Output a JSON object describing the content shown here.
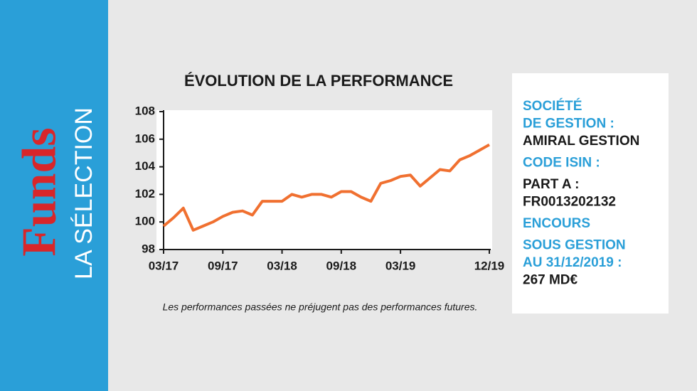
{
  "sidebar": {
    "brand": "Funds",
    "label": "LA SÉLECTION"
  },
  "chart_data": {
    "type": "line",
    "title": "ÉVOLUTION DE LA PERFORMANCE",
    "note": "Les performances passées ne préjugent pas des performances futures.",
    "x": [
      "03/17",
      "04/17",
      "05/17",
      "06/17",
      "07/17",
      "08/17",
      "09/17",
      "10/17",
      "11/17",
      "12/17",
      "01/18",
      "02/18",
      "03/18",
      "04/18",
      "05/18",
      "06/18",
      "07/18",
      "08/18",
      "09/18",
      "10/18",
      "11/18",
      "12/18",
      "01/19",
      "02/19",
      "03/19",
      "04/19",
      "05/19",
      "06/19",
      "07/19",
      "08/19",
      "09/19",
      "10/19",
      "11/19",
      "12/19"
    ],
    "series": [
      {
        "color": "#f07030",
        "values": [
          99.7,
          100.3,
          101.0,
          99.4,
          99.7,
          100.0,
          100.4,
          100.7,
          100.8,
          100.5,
          101.5,
          101.5,
          101.5,
          102.0,
          101.8,
          102.0,
          102.0,
          101.8,
          102.2,
          102.2,
          101.8,
          101.5,
          102.8,
          103.0,
          103.3,
          103.4,
          102.6,
          103.2,
          103.8,
          103.7,
          104.5,
          104.8,
          105.2,
          105.6
        ]
      }
    ],
    "xticks": [
      "03/17",
      "09/17",
      "03/18",
      "09/18",
      "03/19",
      "12/19"
    ],
    "ylim": [
      98,
      108
    ],
    "yticks": [
      98,
      100,
      102,
      104,
      106,
      108
    ],
    "grid": false
  },
  "info": {
    "lines": [
      {
        "text": "SOCIÉTÉ",
        "color": "#2a9fd8"
      },
      {
        "text": "DE GESTION :",
        "color": "#2a9fd8"
      },
      {
        "text": "AMIRAL GESTION",
        "color": "#1a1a1a"
      },
      {
        "text": "CODE ISIN :",
        "color": "#2a9fd8"
      },
      {
        "text": "PART A :",
        "color": "#1a1a1a"
      },
      {
        "text": "FR0013202132",
        "color": "#1a1a1a"
      },
      {
        "text": "ENCOURS",
        "color": "#2a9fd8"
      },
      {
        "text": "SOUS GESTION",
        "color": "#2a9fd8"
      },
      {
        "text": "AU 31/12/2019 :",
        "color": "#2a9fd8"
      },
      {
        "text": "267 MD€",
        "color": "#1a1a1a"
      }
    ]
  }
}
